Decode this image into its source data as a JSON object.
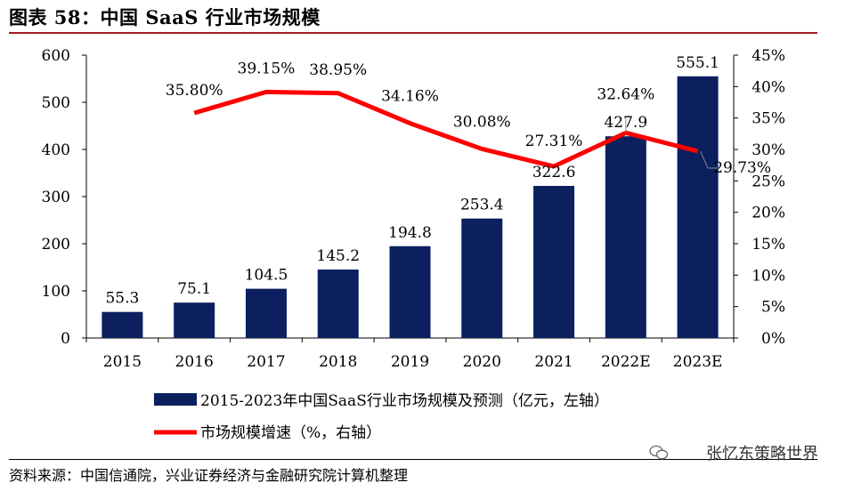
{
  "title": "图表 58：中国 SaaS 行业市场规模",
  "source": "资料来源：中国信通院，兴业证券经济与金融研究院计算机整理",
  "watermark": "张忆东策略世界",
  "colors": {
    "bar": "#0c1f5e",
    "line": "#ff0000",
    "rule": "#a41e22"
  },
  "chart_data": {
    "type": "bar",
    "categories": [
      "2015",
      "2016",
      "2017",
      "2018",
      "2019",
      "2020",
      "2021",
      "2022E",
      "2023E"
    ],
    "series": [
      {
        "name": "2015-2023年中国SaaS行业市场规模及预测（亿元，左轴）",
        "type": "bar",
        "axis": "left",
        "values": [
          55.3,
          75.1,
          104.5,
          145.2,
          194.8,
          253.4,
          322.6,
          427.9,
          555.1
        ],
        "labels": [
          "55.3",
          "75.1",
          "104.5",
          "145.2",
          "194.8",
          "253.4",
          "322.6",
          "427.9",
          "555.1"
        ]
      },
      {
        "name": "市场规模增速（%，右轴）",
        "type": "line",
        "axis": "right",
        "values": [
          null,
          35.8,
          39.15,
          38.95,
          34.16,
          30.08,
          27.31,
          32.64,
          29.73
        ],
        "labels": [
          null,
          "35.80%",
          "39.15%",
          "38.95%",
          "34.16%",
          "30.08%",
          "27.31%",
          "32.64%",
          "29.73%"
        ]
      }
    ],
    "y_left": {
      "ylim": [
        0,
        600
      ],
      "ticks": [
        "0",
        "100",
        "200",
        "300",
        "400",
        "500",
        "600"
      ]
    },
    "y_right": {
      "ylim": [
        0,
        45
      ],
      "ticks": [
        "0%",
        "5%",
        "10%",
        "15%",
        "20%",
        "25%",
        "30%",
        "35%",
        "40%",
        "45%"
      ]
    },
    "legend_position": "bottom",
    "grid": false
  }
}
